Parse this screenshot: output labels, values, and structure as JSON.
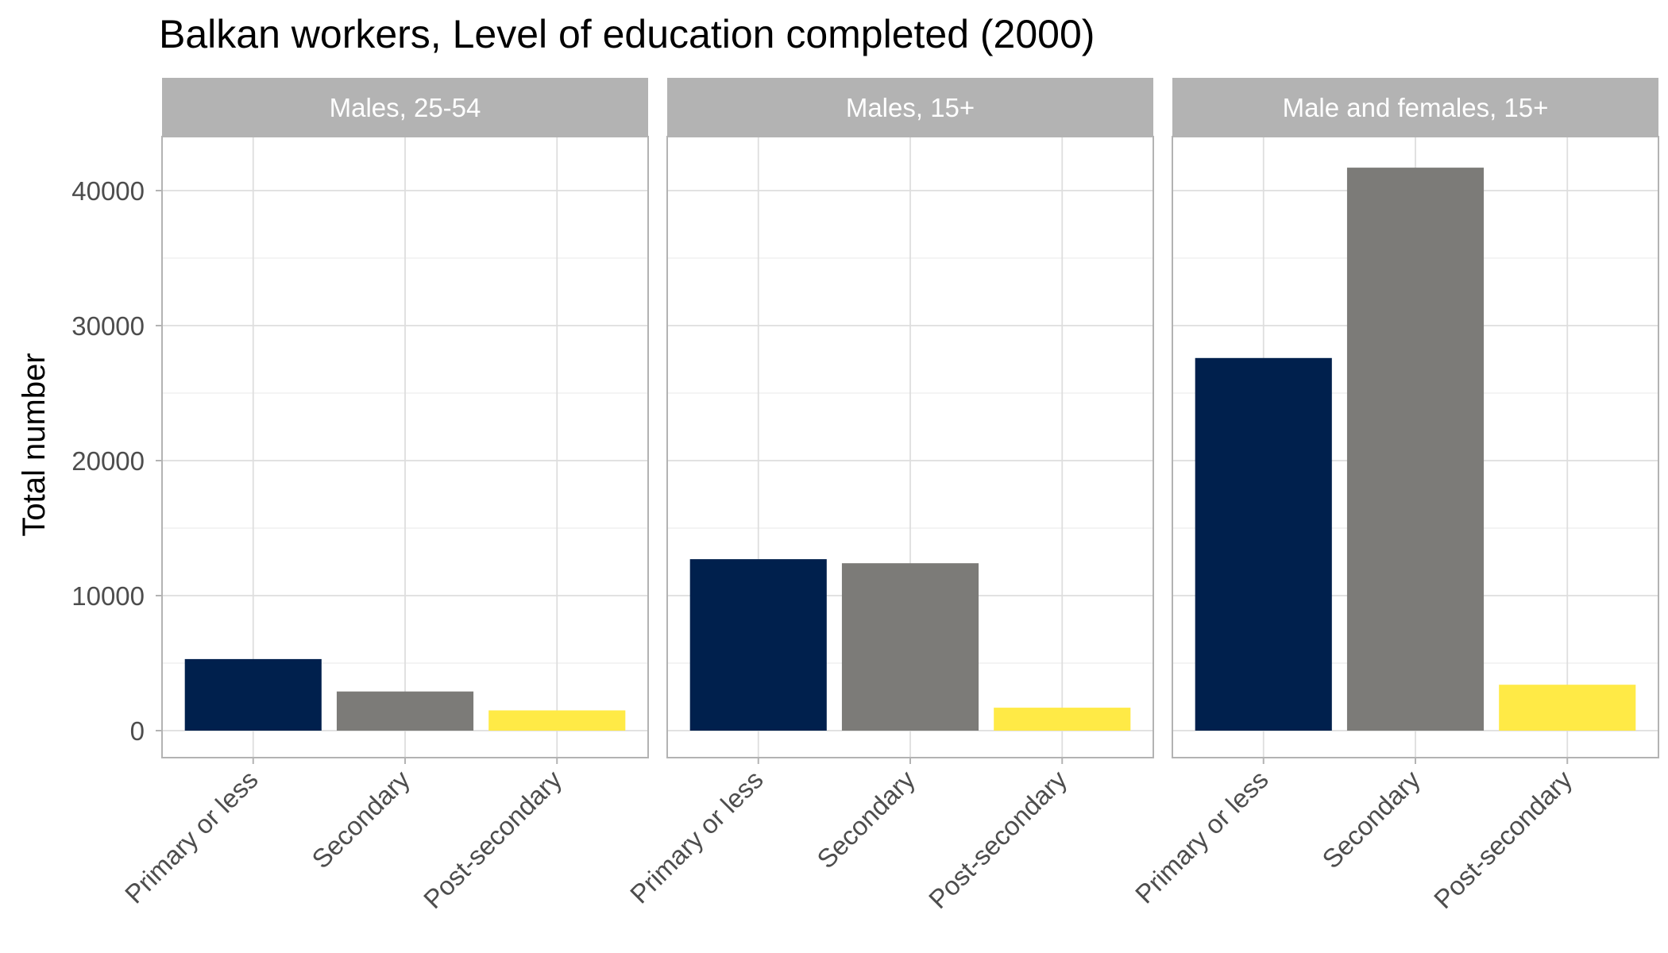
{
  "chart_data": {
    "type": "bar",
    "title": "Balkan workers, Level of education completed (2000)",
    "xlabel": "",
    "ylabel": "Total number",
    "ylim": [
      -2000,
      44000
    ],
    "y_ticks": [
      0,
      10000,
      20000,
      30000,
      40000
    ],
    "y_tick_labels": [
      "0",
      "10000",
      "20000",
      "30000",
      "40000"
    ],
    "categories": [
      "Primary or less",
      "Secondary",
      "Post-secondary"
    ],
    "category_colors": [
      "#00204d",
      "#7c7b78",
      "#ffea46"
    ],
    "grid": true,
    "legend": "none",
    "panels": [
      {
        "name": "Males, 25-54",
        "values": [
          5300,
          2900,
          1500
        ]
      },
      {
        "name": "Males, 15+",
        "values": [
          12700,
          12400,
          1700
        ]
      },
      {
        "name": "Male and females, 15+",
        "values": [
          27600,
          41700,
          3400
        ]
      }
    ]
  }
}
